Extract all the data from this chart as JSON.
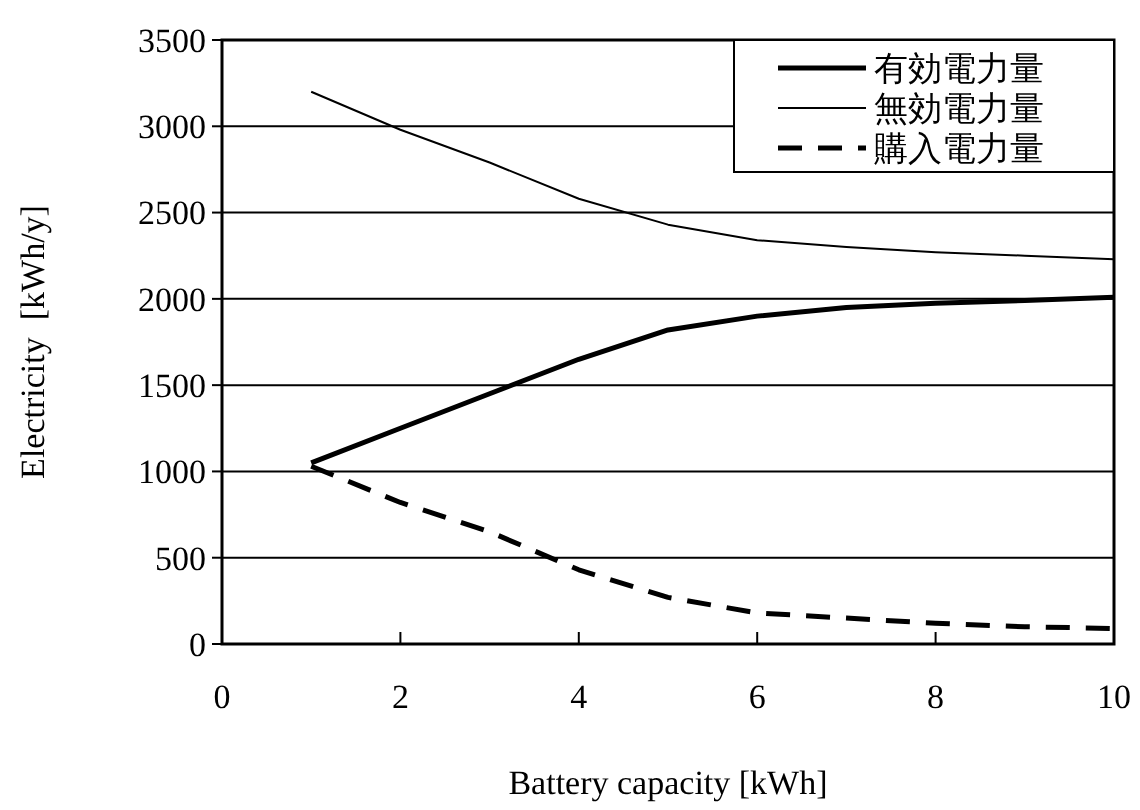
{
  "chart_data": {
    "type": "line",
    "xlabel": "Battery capacity [kWh]",
    "ylabel": "Electricity  [kWh/y]",
    "x": [
      1,
      2,
      3,
      4,
      5,
      6,
      7,
      8,
      9,
      10
    ],
    "xlim": [
      0,
      10
    ],
    "xticks": [
      0,
      2,
      4,
      6,
      8,
      10
    ],
    "ylim": [
      0,
      3500
    ],
    "yticks": [
      0,
      500,
      1000,
      1500,
      2000,
      2500,
      3000,
      3500
    ],
    "grid": "y",
    "legend": "top right",
    "marker": "none",
    "series": [
      {
        "name": "有効電力量",
        "color": "#000000",
        "line_style": "solid",
        "values": [
          1050,
          1250,
          1450,
          1650,
          1820,
          1900,
          1950,
          1975,
          1990,
          2010
        ]
      },
      {
        "name": "無効電力量",
        "color": "#000000",
        "line_style": "solid",
        "values": [
          3200,
          2980,
          2790,
          2580,
          2430,
          2340,
          2300,
          2270,
          2250,
          2230
        ]
      },
      {
        "name": "購入電力量",
        "color": "#000000",
        "line_style": "dashed",
        "values": [
          1030,
          820,
          650,
          430,
          270,
          180,
          150,
          120,
          100,
          90
        ]
      }
    ]
  }
}
